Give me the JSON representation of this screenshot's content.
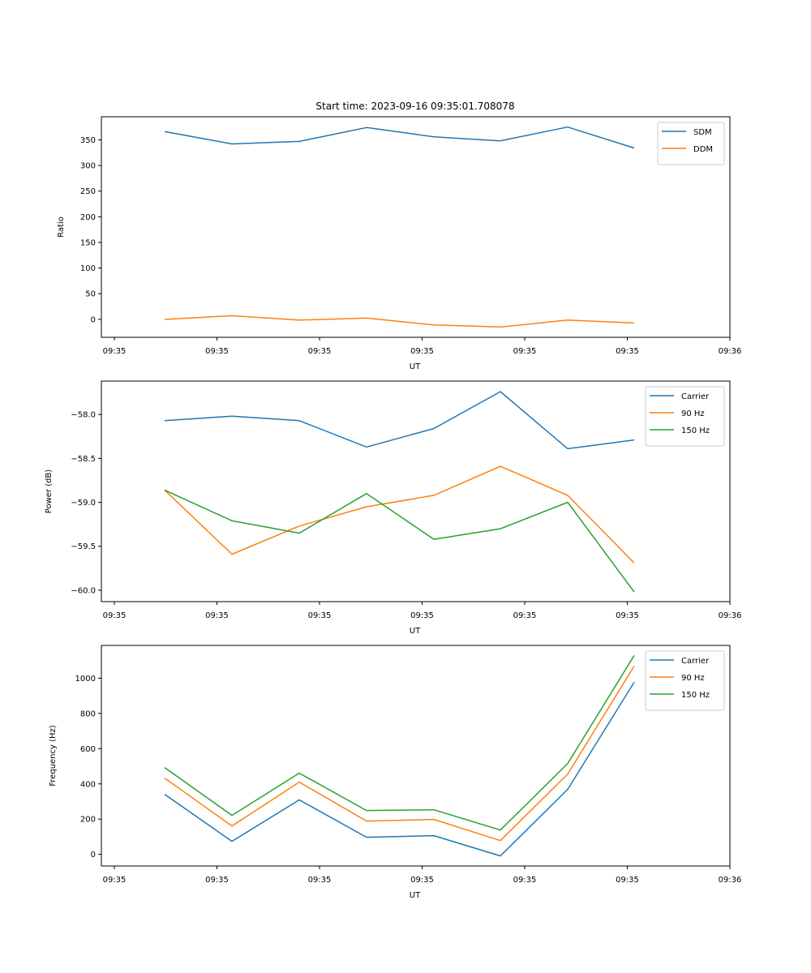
{
  "figure_title": "Start time: 2023-09-16 09:35:01.708078",
  "chart_data": [
    {
      "type": "line",
      "title": "Start time: 2023-09-16 09:35:01.708078",
      "xlabel": "UT",
      "ylabel": "Ratio",
      "x_tick_labels": [
        "09:35",
        "09:35",
        "09:35",
        "09:35",
        "09:35",
        "09:35",
        "09:36"
      ],
      "x_points": 8,
      "y_ticks": [
        0,
        50,
        100,
        150,
        200,
        250,
        300,
        350
      ],
      "ylim": [
        -35,
        395
      ],
      "legend_position": "top-right",
      "series": [
        {
          "name": "SDM",
          "color": "#1f77b4",
          "values": [
            366,
            342,
            347,
            374,
            356,
            348,
            375,
            334
          ]
        },
        {
          "name": "DDM",
          "color": "#ff7f0e",
          "values": [
            0,
            7,
            -1.5,
            2.5,
            -11,
            -15,
            -1.5,
            -7
          ]
        }
      ]
    },
    {
      "type": "line",
      "title": "",
      "xlabel": "UT",
      "ylabel": "Power (dB)",
      "x_tick_labels": [
        "09:35",
        "09:35",
        "09:35",
        "09:35",
        "09:35",
        "09:35",
        "09:36"
      ],
      "x_points": 8,
      "y_ticks": [
        -60.0,
        -59.5,
        -59.0,
        -58.5,
        -58.0
      ],
      "y_tick_labels": [
        "−60.0",
        "−59.5",
        "−59.0",
        "−58.5",
        "−58.0"
      ],
      "ylim": [
        -60.13,
        -57.62
      ],
      "legend_position": "top-right",
      "series": [
        {
          "name": "Carrier",
          "color": "#1f77b4",
          "values": [
            -58.07,
            -58.02,
            -58.07,
            -58.37,
            -58.16,
            -57.74,
            -58.39,
            -58.29
          ]
        },
        {
          "name": "90 Hz",
          "color": "#ff7f0e",
          "values": [
            -58.86,
            -59.59,
            -59.27,
            -59.05,
            -58.92,
            -58.59,
            -58.92,
            -59.69
          ]
        },
        {
          "name": "150 Hz",
          "color": "#2ca02c",
          "values": [
            -58.86,
            -59.21,
            -59.35,
            -58.9,
            -59.42,
            -59.3,
            -59.0,
            -60.02
          ]
        }
      ]
    },
    {
      "type": "line",
      "title": "",
      "xlabel": "UT",
      "ylabel": "Frequency (Hz)",
      "x_tick_labels": [
        "09:35",
        "09:35",
        "09:35",
        "09:35",
        "09:35",
        "09:35",
        "09:36"
      ],
      "x_points": 8,
      "y_ticks": [
        0,
        200,
        400,
        600,
        800,
        1000
      ],
      "ylim": [
        -66,
        1186
      ],
      "legend_position": "top-right",
      "series": [
        {
          "name": "Carrier",
          "color": "#1f77b4",
          "values": [
            341,
            74,
            309,
            97,
            106,
            -9,
            369,
            977
          ]
        },
        {
          "name": "90 Hz",
          "color": "#ff7f0e",
          "values": [
            433,
            161,
            410,
            189,
            198,
            78,
            456,
            1069
          ]
        },
        {
          "name": "150 Hz",
          "color": "#2ca02c",
          "values": [
            493,
            221,
            461,
            249,
            253,
            138,
            516,
            1129
          ]
        }
      ]
    }
  ]
}
